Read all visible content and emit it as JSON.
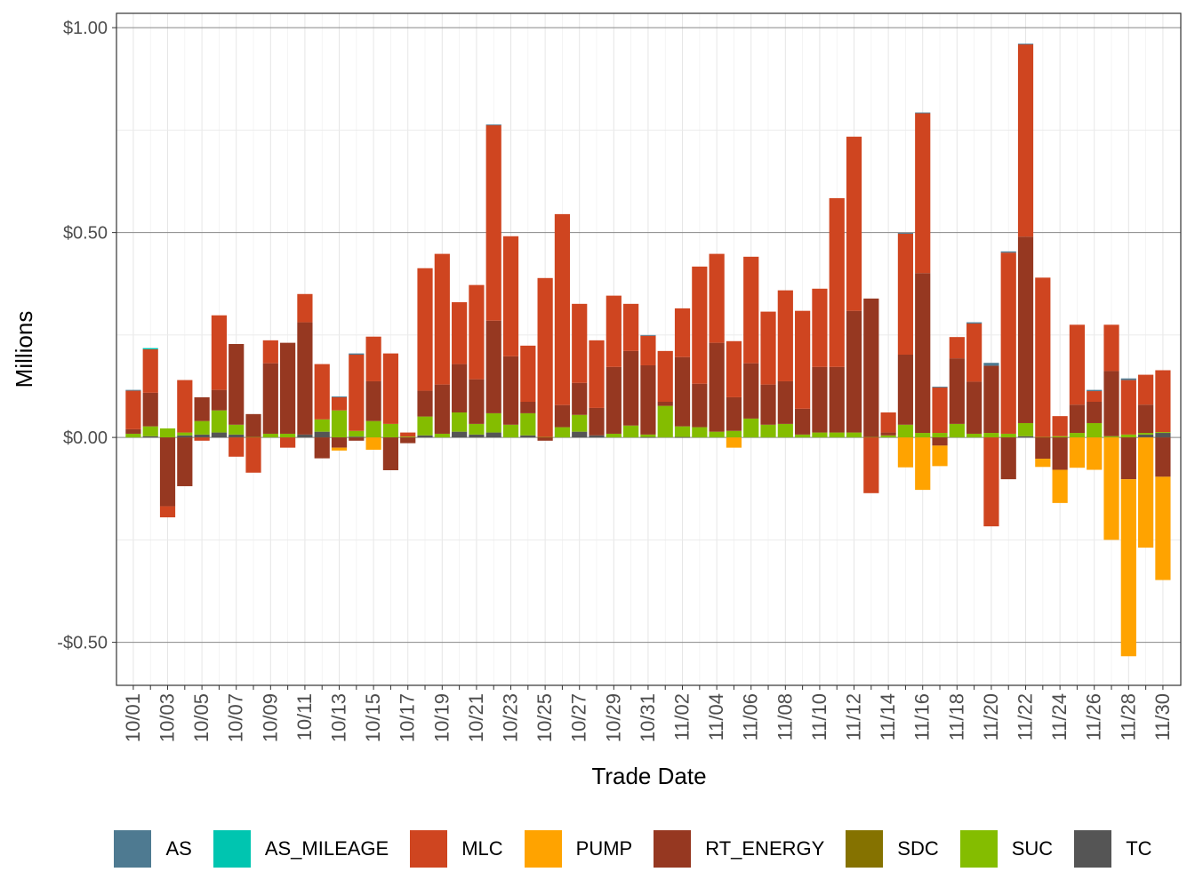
{
  "chart_data": {
    "type": "bar",
    "stacked": true,
    "xlabel": "Trade Date",
    "ylabel": "Millions",
    "ylim": [
      -0.605,
      1.035
    ],
    "yticks": [
      -0.5,
      0,
      0.5,
      1.0
    ],
    "ytick_labels": [
      "-$0.50",
      "$0.00",
      "$0.50",
      "$1.00"
    ],
    "grid": true,
    "legend_position": "bottom",
    "categories": [
      "10/01",
      "10/02",
      "10/03",
      "10/04",
      "10/05",
      "10/06",
      "10/07",
      "10/08",
      "10/09",
      "10/10",
      "10/11",
      "10/12",
      "10/13",
      "10/14",
      "10/15",
      "10/16",
      "10/17",
      "10/18",
      "10/19",
      "10/20",
      "10/21",
      "10/22",
      "10/23",
      "10/24",
      "10/25",
      "10/26",
      "10/27",
      "10/28",
      "10/29",
      "10/30",
      "10/31",
      "11/01",
      "11/02",
      "11/03",
      "11/04",
      "11/05",
      "11/06",
      "11/07",
      "11/08",
      "11/09",
      "11/10",
      "11/11",
      "11/12",
      "11/13",
      "11/14",
      "11/15",
      "11/16",
      "11/17",
      "11/18",
      "11/19",
      "11/20",
      "11/21",
      "11/22",
      "11/23",
      "11/24",
      "11/25",
      "11/26",
      "11/27",
      "11/28",
      "11/29",
      "11/30"
    ],
    "xtick_labels": [
      "10/01",
      "10/03",
      "10/05",
      "10/07",
      "10/09",
      "10/11",
      "10/13",
      "10/15",
      "10/17",
      "10/19",
      "10/21",
      "10/23",
      "10/25",
      "10/27",
      "10/29",
      "10/31",
      "11/02",
      "11/04",
      "11/06",
      "11/08",
      "11/10",
      "11/12",
      "11/14",
      "11/16",
      "11/18",
      "11/20",
      "11/22",
      "11/24",
      "11/26",
      "11/28",
      "11/30"
    ],
    "series": [
      {
        "name": "TC",
        "color": "#555555",
        "values": [
          0,
          0.003,
          0,
          0.005,
          0.007,
          0.012,
          0.007,
          0,
          0,
          0,
          0.007,
          0.014,
          0,
          0.002,
          0,
          0,
          0,
          0.005,
          0,
          0.014,
          0.007,
          0.012,
          0,
          0.005,
          0,
          0,
          0.014,
          0.005,
          0,
          0,
          0.001,
          0,
          0.001,
          0,
          0,
          0,
          0,
          0,
          0,
          0,
          0,
          0,
          0,
          0,
          0,
          0,
          0,
          0,
          0,
          0,
          0,
          0,
          0.003,
          0,
          0,
          0,
          0,
          0,
          0,
          0.007,
          0.011
        ]
      },
      {
        "name": "SUC",
        "color": "#84bd00",
        "values": [
          0.009,
          0.024,
          0.022,
          0.007,
          0.033,
          0.054,
          0.024,
          0.001,
          0.009,
          0.009,
          0,
          0.03,
          0.066,
          0.014,
          0.04,
          0.033,
          0.002,
          0.046,
          0.009,
          0.047,
          0.026,
          0.047,
          0.031,
          0.054,
          0.001,
          0.025,
          0.041,
          0,
          0.009,
          0.029,
          0.006,
          0.077,
          0.026,
          0.025,
          0.014,
          0.016,
          0.046,
          0.031,
          0.033,
          0.007,
          0.012,
          0.012,
          0.012,
          0.001,
          0.005,
          0.031,
          0.011,
          0.011,
          0.033,
          0.009,
          0.011,
          0.009,
          0.032,
          0.001,
          0.003,
          0.011,
          0.035,
          0.003,
          0.007,
          0.004,
          0.002
        ]
      },
      {
        "name": "SDC",
        "color": "#857200",
        "values": [
          0,
          0,
          0,
          0,
          0,
          0,
          0,
          0,
          0,
          0,
          0,
          0,
          0,
          0,
          0,
          0,
          0,
          0,
          0,
          0,
          0,
          0,
          0,
          0,
          0,
          0,
          0,
          0,
          0,
          0,
          0,
          0,
          0,
          0,
          0,
          0,
          0,
          0,
          0,
          0,
          0,
          0,
          0,
          0,
          0,
          0,
          0,
          0,
          0,
          0,
          0,
          0,
          0,
          0,
          0,
          0,
          0,
          0,
          0,
          0,
          0
        ]
      },
      {
        "name": "RT_ENERGY",
        "color": "#963821",
        "values": [
          0.011,
          0.082,
          -0.168,
          -0.119,
          0.058,
          0.05,
          0.197,
          0.056,
          0.172,
          0.222,
          0.274,
          -0.051,
          -0.025,
          -0.008,
          0.097,
          -0.08,
          -0.014,
          0.063,
          0.12,
          0.118,
          0.109,
          0.226,
          0.167,
          0.028,
          -0.008,
          0.054,
          0.078,
          0.067,
          0.163,
          0.182,
          0.169,
          0.01,
          0.169,
          0.106,
          0.217,
          0.082,
          0.135,
          0.098,
          0.104,
          0.063,
          0.16,
          0.16,
          0.297,
          0.338,
          0.007,
          0.171,
          0.39,
          -0.02,
          0.16,
          0.127,
          0.164,
          -0.102,
          0.455,
          -0.052,
          -0.079,
          0.069,
          0.052,
          0.159,
          -0.102,
          0.069,
          -0.096
        ]
      },
      {
        "name": "PUMP",
        "color": "#ffa300",
        "values": [
          0,
          0,
          0,
          0,
          0,
          0,
          0,
          0,
          0,
          0,
          0,
          0,
          -0.007,
          0,
          -0.03,
          0,
          0,
          0,
          0,
          0,
          0,
          0,
          0,
          0,
          0,
          0,
          0,
          0,
          0,
          0,
          0,
          0,
          0,
          0,
          0,
          -0.025,
          0,
          0,
          0,
          0,
          0,
          0,
          0,
          0,
          0,
          -0.073,
          -0.128,
          -0.05,
          0,
          0,
          0,
          0,
          0,
          -0.02,
          -0.081,
          -0.074,
          -0.079,
          -0.25,
          -0.432,
          -0.269,
          -0.252
        ]
      },
      {
        "name": "MLC",
        "color": "#cf4520",
        "values": [
          0.094,
          0.106,
          -0.027,
          0.128,
          -0.008,
          0.182,
          -0.047,
          -0.086,
          0.056,
          -0.025,
          0.069,
          0.135,
          0.032,
          0.186,
          0.109,
          0.172,
          0.01,
          0.299,
          0.319,
          0.151,
          0.23,
          0.477,
          0.293,
          0.137,
          0.388,
          0.466,
          0.193,
          0.165,
          0.174,
          0.115,
          0.072,
          0.124,
          0.119,
          0.286,
          0.217,
          0.137,
          0.26,
          0.178,
          0.222,
          0.239,
          0.191,
          0.412,
          0.425,
          -0.136,
          0.049,
          0.295,
          0.39,
          0.111,
          0.052,
          0.142,
          -0.217,
          0.442,
          0.469,
          0.389,
          0.049,
          0.195,
          0.026,
          0.113,
          0.133,
          0.073,
          0.151
        ]
      },
      {
        "name": "AS_MILEAGE",
        "color": "#00c5b0",
        "values": [
          0,
          0.003,
          0,
          0,
          0,
          0,
          0,
          0,
          0,
          0,
          0,
          0,
          0,
          0,
          0,
          0,
          0,
          0,
          0,
          0,
          0,
          0,
          0,
          0,
          0,
          0,
          0,
          0,
          0,
          0,
          0,
          0,
          0,
          0,
          0,
          0,
          0,
          0,
          0,
          0,
          0,
          0,
          0,
          0,
          0,
          0,
          0,
          0,
          0,
          0,
          0,
          0,
          0,
          0,
          0,
          0,
          0,
          0,
          0,
          0,
          0
        ]
      },
      {
        "name": "AS",
        "color": "#4e7a91",
        "values": [
          0.002,
          0,
          0,
          0,
          0,
          0,
          0,
          0,
          0,
          0,
          0,
          0,
          0.002,
          0.003,
          0,
          0,
          0,
          0,
          0,
          0,
          0,
          0.002,
          0,
          0,
          0,
          0,
          0,
          0,
          0,
          0,
          0.002,
          0,
          0,
          0,
          0,
          0,
          0,
          0,
          0,
          0,
          0,
          0,
          0,
          0,
          0,
          0.002,
          0.002,
          0.002,
          0,
          0.003,
          0.007,
          0.003,
          0.002,
          0,
          0,
          0,
          0.003,
          0,
          0.004,
          0,
          0
        ]
      }
    ],
    "legend": [
      {
        "name": "AS",
        "color": "#4e7a91"
      },
      {
        "name": "AS_MILEAGE",
        "color": "#00c5b0"
      },
      {
        "name": "MLC",
        "color": "#cf4520"
      },
      {
        "name": "PUMP",
        "color": "#ffa300"
      },
      {
        "name": "RT_ENERGY",
        "color": "#963821"
      },
      {
        "name": "SDC",
        "color": "#857200"
      },
      {
        "name": "SUC",
        "color": "#84bd00"
      },
      {
        "name": "TC",
        "color": "#555555"
      }
    ]
  }
}
